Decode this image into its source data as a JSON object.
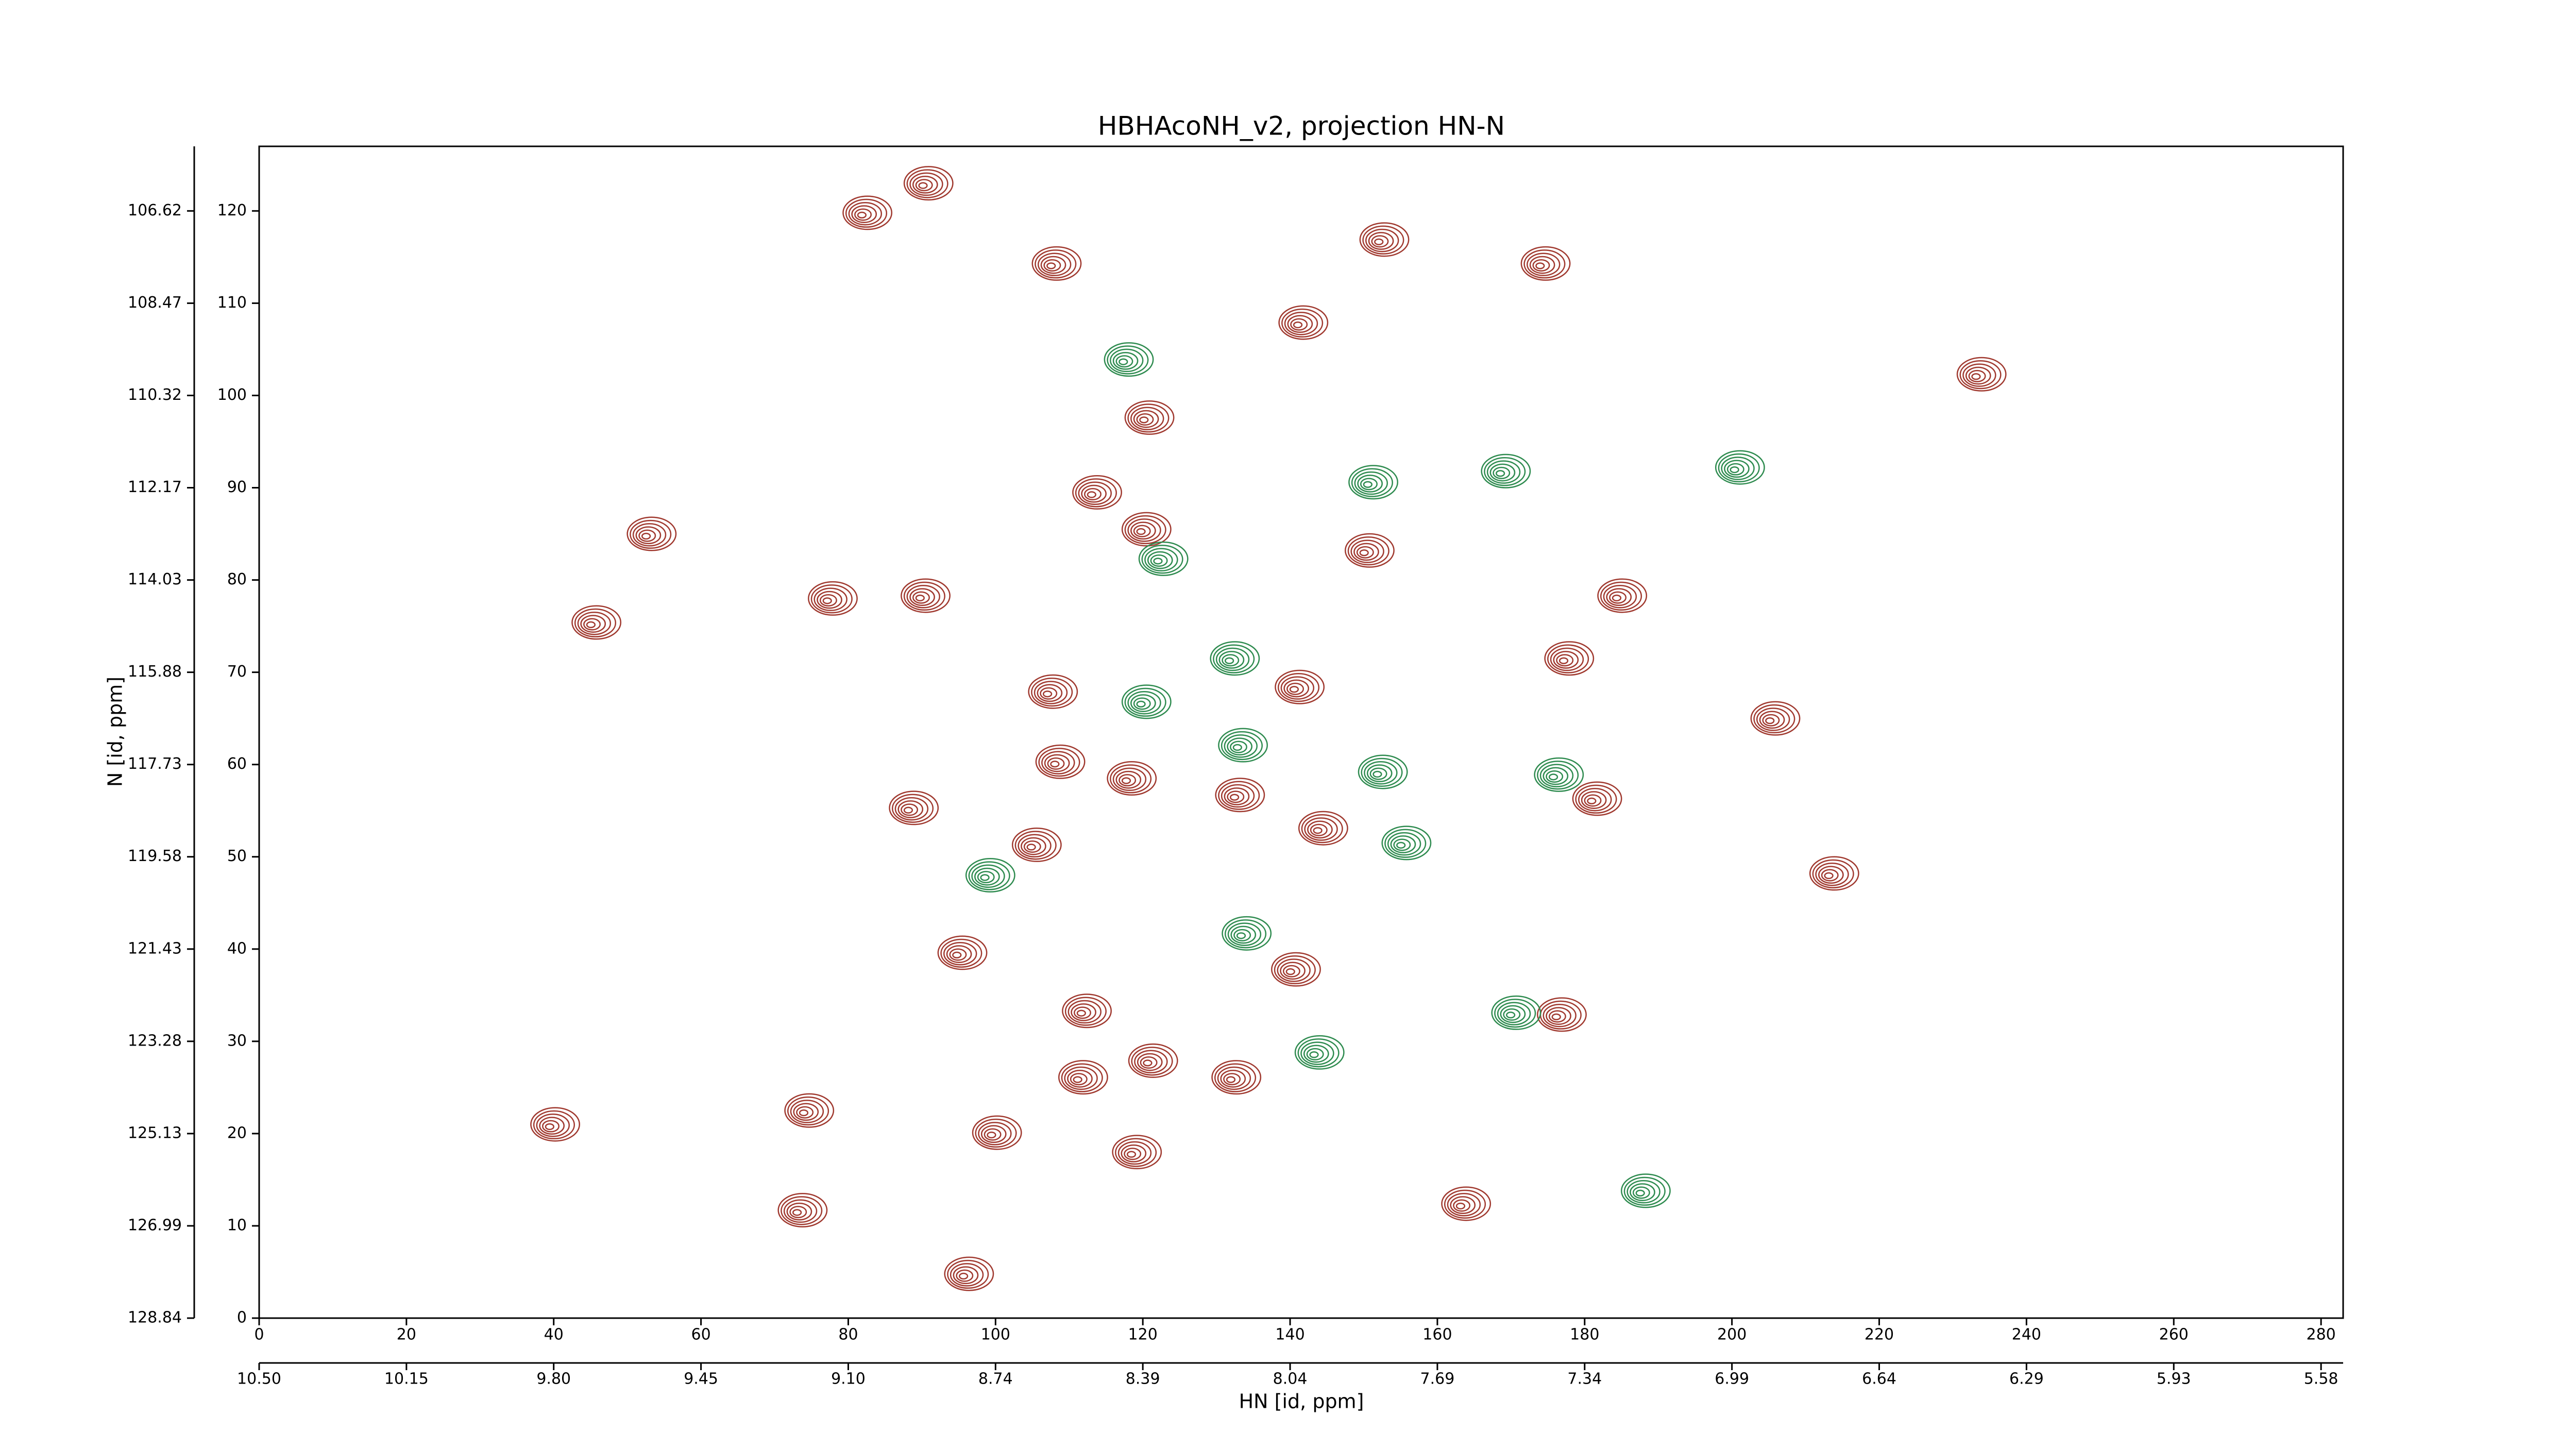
{
  "chart_data": {
    "type": "contour",
    "title": "HBHAcoNH_v2, projection HN-N",
    "xlabel": "HN [id, ppm]",
    "ylabel": "N [id, ppm]",
    "xlim": [
      0,
      283
    ],
    "ylim": [
      0,
      127
    ],
    "xticks": [
      0,
      20,
      40,
      60,
      80,
      100,
      120,
      140,
      160,
      180,
      200,
      220,
      240,
      260,
      280
    ],
    "yticks": [
      0,
      10,
      20,
      30,
      40,
      50,
      60,
      70,
      80,
      90,
      100,
      110,
      120
    ],
    "x2ticks": [
      {
        "value": 0,
        "label": "10.50"
      },
      {
        "value": 20,
        "label": "10.15"
      },
      {
        "value": 40,
        "label": "9.80"
      },
      {
        "value": 60,
        "label": "9.45"
      },
      {
        "value": 80,
        "label": "9.10"
      },
      {
        "value": 100,
        "label": "8.74"
      },
      {
        "value": 120,
        "label": "8.39"
      },
      {
        "value": 140,
        "label": "8.04"
      },
      {
        "value": 160,
        "label": "7.69"
      },
      {
        "value": 180,
        "label": "7.34"
      },
      {
        "value": 200,
        "label": "6.99"
      },
      {
        "value": 220,
        "label": "6.64"
      },
      {
        "value": 240,
        "label": "6.29"
      },
      {
        "value": 260,
        "label": "5.93"
      },
      {
        "value": 280,
        "label": "5.58"
      }
    ],
    "y2ticks": [
      {
        "value": 0,
        "label": "128.84"
      },
      {
        "value": 10,
        "label": "126.99"
      },
      {
        "value": 20,
        "label": "125.13"
      },
      {
        "value": 30,
        "label": "123.28"
      },
      {
        "value": 40,
        "label": "121.43"
      },
      {
        "value": 50,
        "label": "119.58"
      },
      {
        "value": 60,
        "label": "117.73"
      },
      {
        "value": 70,
        "label": "115.88"
      },
      {
        "value": 80,
        "label": "114.03"
      },
      {
        "value": 90,
        "label": "112.17"
      },
      {
        "value": 100,
        "label": "110.32"
      },
      {
        "value": 110,
        "label": "108.47"
      },
      {
        "value": 120,
        "label": "106.62"
      }
    ],
    "series": [
      {
        "color": "#a0392f",
        "x": [
          81.7,
          90,
          107.4,
          151.9,
          173.8,
          140.9,
          120,
          233,
          52.4,
          44.9,
          77,
          89.6,
          112.9,
          119.6,
          149.9,
          184.2,
          177,
          140.4,
          106.9,
          205,
          107.9,
          117.6,
          132.3,
          180.8,
          88,
          143.6,
          213,
          104.7,
          94.6,
          111.5,
          131.8,
          176,
          73.8,
          99.3,
          118.3,
          39.3,
          72.9,
          163,
          95.5,
          139.9,
          111,
          120.5
        ],
        "y": [
          119.5,
          122.7,
          114,
          116.6,
          114,
          107.6,
          97.3,
          102,
          84.7,
          75.1,
          77.7,
          78,
          89.2,
          85.2,
          82.9,
          78,
          71.2,
          68.1,
          67.6,
          64.7,
          60,
          58.2,
          56.4,
          56,
          55,
          52.8,
          47.9,
          51,
          39.3,
          33,
          25.8,
          32.6,
          22.2,
          19.8,
          17.7,
          20.7,
          11.4,
          12.1,
          4.5,
          37.5,
          25.8,
          27.6
        ]
      },
      {
        "color": "#2e8b4f",
        "x": [
          117.2,
          150.4,
          168.4,
          200.2,
          121.9,
          131.6,
          132.7,
          151.7,
          175.6,
          154.9,
          98.4,
          133.2,
          143.1,
          169.8,
          187.4,
          119.6
        ],
        "y": [
          103.6,
          90.3,
          91.5,
          91.9,
          82,
          71.2,
          61.8,
          58.9,
          58.6,
          51.2,
          47.7,
          41.4,
          28.5,
          32.8,
          13.5,
          66.5
        ]
      }
    ]
  }
}
